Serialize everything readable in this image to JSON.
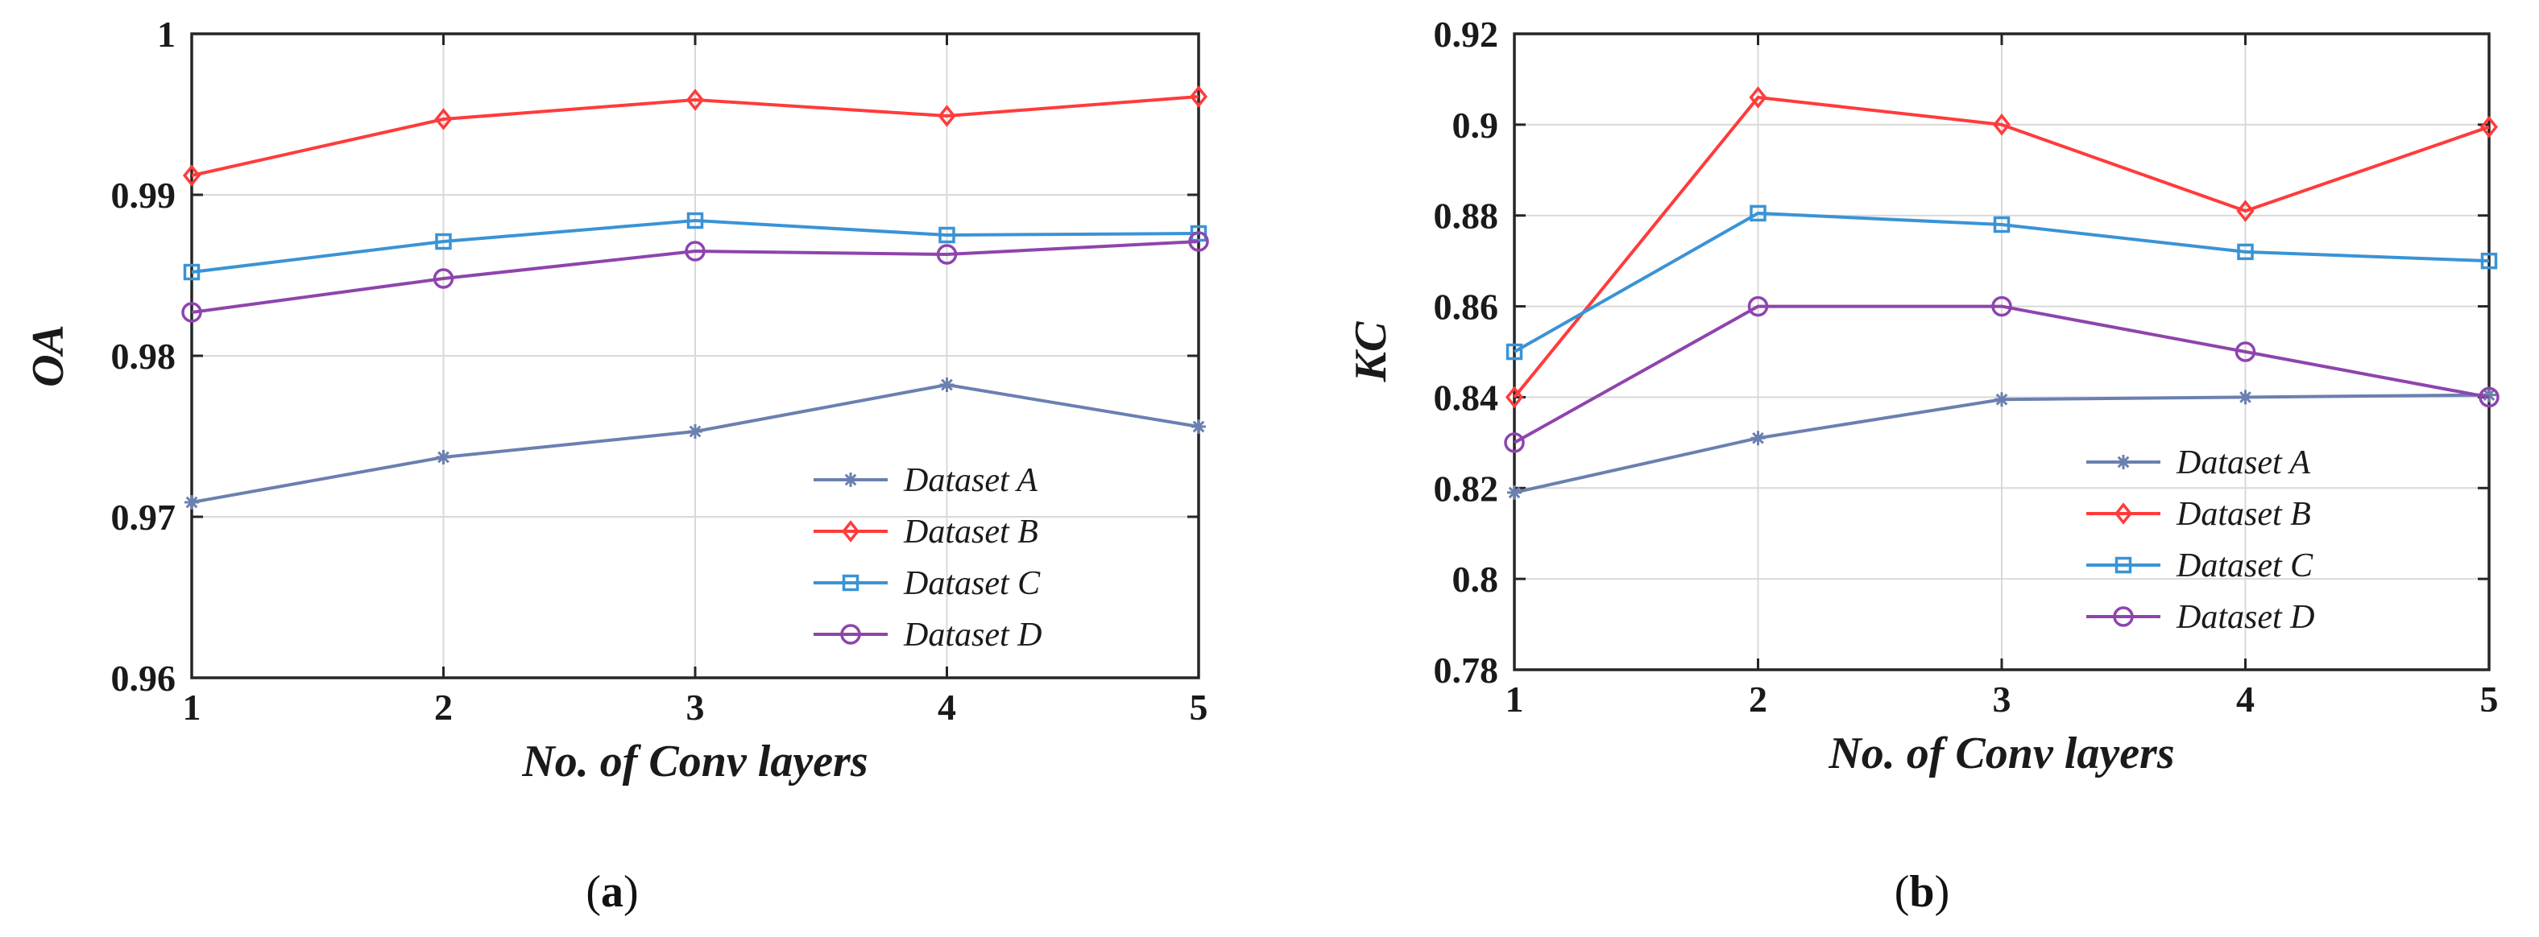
{
  "chart_data": [
    {
      "type": "line",
      "panel": "a",
      "caption_letter": "a",
      "xlabel": "No. of Conv layers",
      "ylabel": "OA",
      "x": [
        1,
        2,
        3,
        4,
        5
      ],
      "xticks": [
        "1",
        "2",
        "3",
        "4",
        "5"
      ],
      "ylim": [
        0.96,
        1.0
      ],
      "yticks": [
        0.96,
        0.97,
        0.98,
        0.99,
        1.0
      ],
      "ytick_labels": [
        "0.96",
        "0.97",
        "0.98",
        "0.99",
        "1"
      ],
      "grid": true,
      "legend_position": "bottom-right",
      "series": [
        {
          "name": "Dataset A",
          "marker": "star",
          "color": "#6b80b0",
          "values": [
            0.9709,
            0.9737,
            0.9753,
            0.9782,
            0.9756
          ]
        },
        {
          "name": "Dataset B",
          "marker": "diamond",
          "color": "#ff3b3b",
          "values": [
            0.9912,
            0.9947,
            0.9959,
            0.9949,
            0.9961
          ]
        },
        {
          "name": "Dataset C",
          "marker": "square",
          "color": "#3a93d6",
          "values": [
            0.9852,
            0.9871,
            0.9884,
            0.9875,
            0.9876
          ]
        },
        {
          "name": "Dataset D",
          "marker": "circle",
          "color": "#8e44ad",
          "values": [
            0.9827,
            0.9848,
            0.9865,
            0.9863,
            0.9871
          ]
        }
      ]
    },
    {
      "type": "line",
      "panel": "b",
      "caption_letter": "b",
      "xlabel": "No. of Conv layers",
      "ylabel": "KC",
      "x": [
        1,
        2,
        3,
        4,
        5
      ],
      "xticks": [
        "1",
        "2",
        "3",
        "4",
        "5"
      ],
      "ylim": [
        0.78,
        0.92
      ],
      "yticks": [
        0.78,
        0.8,
        0.82,
        0.84,
        0.86,
        0.88,
        0.9,
        0.92
      ],
      "ytick_labels": [
        "0.78",
        "0.8",
        "0.82",
        "0.84",
        "0.86",
        "0.88",
        "0.9",
        "0.92"
      ],
      "grid": true,
      "legend_position": "bottom-right",
      "series": [
        {
          "name": "Dataset A",
          "marker": "star",
          "color": "#6b80b0",
          "values": [
            0.819,
            0.831,
            0.8395,
            0.84,
            0.8405
          ]
        },
        {
          "name": "Dataset B",
          "marker": "diamond",
          "color": "#ff3b3b",
          "values": [
            0.84,
            0.906,
            0.9,
            0.881,
            0.8995
          ]
        },
        {
          "name": "Dataset C",
          "marker": "square",
          "color": "#3a93d6",
          "values": [
            0.85,
            0.8805,
            0.878,
            0.872,
            0.87
          ]
        },
        {
          "name": "Dataset D",
          "marker": "circle",
          "color": "#8e44ad",
          "values": [
            0.83,
            0.86,
            0.86,
            0.85,
            0.84
          ]
        }
      ]
    }
  ]
}
